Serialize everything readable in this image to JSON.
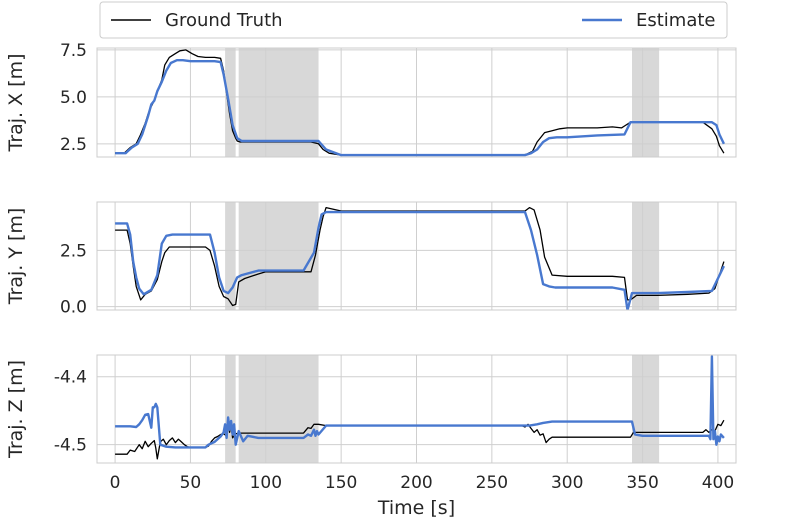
{
  "chart_data": {
    "type": "line",
    "xlabel": "Time [s]",
    "xlim": [
      -12,
      412
    ],
    "xticks": [
      0,
      50,
      100,
      150,
      200,
      250,
      300,
      350,
      400
    ],
    "legend": {
      "placement": "top",
      "entries": [
        {
          "label": "Ground Truth",
          "color": "#000000"
        },
        {
          "label": "Estimate",
          "color": "#4878cf"
        }
      ]
    },
    "shaded_intervals": [
      [
        73,
        80
      ],
      [
        82,
        135
      ],
      [
        343,
        361
      ]
    ],
    "panels": [
      {
        "ylabel": "Traj. X [m]",
        "ylim": [
          1.8,
          7.6
        ],
        "yticks": [
          {
            "value": 2.5,
            "label": "2.5"
          },
          {
            "value": 5.0,
            "label": "5.0"
          },
          {
            "value": 7.5,
            "label": "7.5"
          }
        ],
        "series": [
          {
            "name": "Ground Truth",
            "color": "#000000",
            "width": 1.3,
            "x": [
              0,
              6,
              10,
              14,
              17,
              20,
              22,
              24,
              26,
              28,
              31,
              33,
              36,
              40,
              43,
              47,
              51,
              55,
              60,
              66,
              70,
              72,
              74,
              76,
              78,
              80,
              81,
              83,
              88,
              100,
              120,
              130,
              135,
              138,
              142,
              150,
              200,
              260,
              270,
              273,
              277,
              280,
              285,
              290,
              295,
              300,
              320,
              330,
              336,
              338,
              342,
              346,
              360,
              375,
              390,
              396,
              399,
              401,
              404
            ],
            "y": [
              2.0,
              2.0,
              2.3,
              2.5,
              3.0,
              3.6,
              4.1,
              4.5,
              4.8,
              5.3,
              5.9,
              6.7,
              7.1,
              7.3,
              7.45,
              7.5,
              7.3,
              7.15,
              7.1,
              7.1,
              7.05,
              6.4,
              5.2,
              4.1,
              3.2,
              2.8,
              2.65,
              2.6,
              2.6,
              2.6,
              2.6,
              2.6,
              2.5,
              2.2,
              2.0,
              1.9,
              1.9,
              1.9,
              1.9,
              1.95,
              2.1,
              2.6,
              3.1,
              3.2,
              3.3,
              3.35,
              3.35,
              3.4,
              3.35,
              3.45,
              3.65,
              3.65,
              3.65,
              3.65,
              3.65,
              3.3,
              2.9,
              2.4,
              2.0
            ]
          },
          {
            "name": "Estimate",
            "color": "#4878cf",
            "width": 2.4,
            "x": [
              0,
              7,
              11,
              15,
              18,
              20,
              22,
              24,
              26,
              28,
              31,
              34,
              37,
              41,
              45,
              50,
              55,
              60,
              66,
              70,
              72,
              75,
              78,
              81,
              84,
              90,
              100,
              120,
              130,
              135,
              140,
              150,
              200,
              260,
              272,
              276,
              280,
              284,
              288,
              293,
              300,
              320,
              338,
              342,
              346,
              360,
              380,
              396,
              399,
              401,
              404
            ],
            "y": [
              2.0,
              2.0,
              2.3,
              2.5,
              3.0,
              3.5,
              4.0,
              4.6,
              4.8,
              5.3,
              5.8,
              6.4,
              6.8,
              6.95,
              6.95,
              6.9,
              6.9,
              6.9,
              6.9,
              6.85,
              6.2,
              4.9,
              3.5,
              2.8,
              2.65,
              2.65,
              2.65,
              2.65,
              2.65,
              2.65,
              2.2,
              1.9,
              1.9,
              1.9,
              1.9,
              2.0,
              2.2,
              2.6,
              2.8,
              2.85,
              2.85,
              2.95,
              3.0,
              3.65,
              3.65,
              3.65,
              3.65,
              3.65,
              3.5,
              3.0,
              2.5
            ]
          }
        ]
      },
      {
        "ylabel": "Traj. Y [m]",
        "ylim": [
          -0.15,
          4.65
        ],
        "yticks": [
          {
            "value": 0.0,
            "label": "0.0"
          },
          {
            "value": 2.5,
            "label": "2.5"
          }
        ],
        "series": [
          {
            "name": "Ground Truth",
            "color": "#000000",
            "width": 1.3,
            "x": [
              0,
              8,
              10,
              12,
              14,
              17,
              20,
              24,
              28,
              31,
              33,
              36,
              40,
              50,
              60,
              63,
              66,
              69,
              72,
              75,
              78,
              80,
              82,
              86,
              95,
              100,
              125,
              130,
              133,
              136,
              138,
              140,
              150,
              200,
              260,
              272,
              275,
              278,
              282,
              285,
              290,
              300,
              330,
              338,
              340,
              342,
              346,
              360,
              380,
              394,
              398,
              404
            ],
            "y": [
              3.4,
              3.4,
              2.8,
              1.8,
              0.9,
              0.3,
              0.55,
              0.7,
              1.2,
              2.0,
              2.4,
              2.65,
              2.65,
              2.65,
              2.65,
              2.5,
              1.8,
              0.9,
              0.45,
              0.35,
              0.05,
              0.1,
              1.1,
              1.25,
              1.45,
              1.55,
              1.55,
              1.55,
              2.3,
              3.4,
              4.0,
              4.4,
              4.25,
              4.25,
              4.25,
              4.25,
              4.4,
              4.3,
              3.4,
              2.2,
              1.4,
              1.35,
              1.35,
              1.3,
              0.3,
              0.3,
              0.5,
              0.5,
              0.55,
              0.6,
              0.8,
              2.0
            ]
          },
          {
            "name": "Estimate",
            "color": "#4878cf",
            "width": 2.4,
            "x": [
              0,
              8,
              10,
              12,
              14,
              16,
              19,
              24,
              28,
              31,
              34,
              38,
              50,
              63,
              66,
              69,
              72,
              75,
              78,
              81,
              84,
              95,
              100,
              125,
              132,
              135,
              137,
              140,
              150,
              200,
              260,
              272,
              276,
              280,
              284,
              288,
              292,
              300,
              330,
              338,
              340,
              343,
              346,
              360,
              380,
              396,
              404
            ],
            "y": [
              3.7,
              3.7,
              3.2,
              2.0,
              1.3,
              0.8,
              0.55,
              0.75,
              1.4,
              2.8,
              3.15,
              3.2,
              3.2,
              3.2,
              2.4,
              1.3,
              0.7,
              0.6,
              0.85,
              1.3,
              1.4,
              1.6,
              1.6,
              1.6,
              2.4,
              3.5,
              4.1,
              4.2,
              4.2,
              4.2,
              4.2,
              4.2,
              3.4,
              2.3,
              1.0,
              0.9,
              0.85,
              0.85,
              0.85,
              0.75,
              -0.15,
              0.6,
              0.6,
              0.6,
              0.65,
              0.7,
              1.8
            ]
          }
        ]
      },
      {
        "ylabel": "Traj. Z [m]",
        "ylim": [
          -4.527,
          -4.368
        ],
        "yticks": [
          {
            "value": -4.4,
            "label": "-4.4"
          },
          {
            "value": -4.5,
            "label": "-4.5"
          }
        ],
        "series": [
          {
            "name": "Ground Truth",
            "color": "#000000",
            "width": 1.3,
            "x": [
              0,
              8,
              10,
              13,
              16,
              18,
              20,
              22,
              24,
              26,
              27,
              28,
              30,
              32,
              34,
              36,
              38,
              40,
              42,
              44,
              46,
              48,
              50,
              55,
              60,
              62,
              64,
              66,
              68,
              70,
              72,
              74,
              75,
              76,
              77,
              78,
              80,
              82,
              84,
              86,
              88,
              90,
              100,
              120,
              125,
              128,
              130,
              132,
              135,
              140,
              150,
              200,
              260,
              270,
              272,
              274,
              276,
              278,
              280,
              282,
              284,
              286,
              288,
              290,
              300,
              330,
              342,
              344,
              360,
              380,
              390,
              392,
              394,
              396,
              398,
              400,
              402,
              404
            ],
            "y": [
              -4.514,
              -4.514,
              -4.508,
              -4.51,
              -4.5,
              -4.506,
              -4.495,
              -4.503,
              -4.498,
              -4.494,
              -4.505,
              -4.521,
              -4.496,
              -4.492,
              -4.5,
              -4.494,
              -4.49,
              -4.497,
              -4.492,
              -4.496,
              -4.5,
              -4.503,
              -4.504,
              -4.504,
              -4.504,
              -4.502,
              -4.495,
              -4.49,
              -4.488,
              -4.485,
              -4.484,
              -4.487,
              -4.467,
              -4.482,
              -4.472,
              -4.49,
              -4.484,
              -4.483,
              -4.483,
              -4.483,
              -4.483,
              -4.483,
              -4.483,
              -4.483,
              -4.483,
              -4.475,
              -4.476,
              -4.47,
              -4.47,
              -4.472,
              -4.472,
              -4.472,
              -4.472,
              -4.472,
              -4.474,
              -4.47,
              -4.476,
              -4.482,
              -4.478,
              -4.486,
              -4.484,
              -4.497,
              -4.492,
              -4.489,
              -4.489,
              -4.489,
              -4.489,
              -4.482,
              -4.482,
              -4.482,
              -4.482,
              -4.478,
              -4.482,
              -4.478,
              -4.48,
              -4.47,
              -4.472,
              -4.464
            ]
          },
          {
            "name": "Estimate",
            "color": "#4878cf",
            "width": 2.4,
            "x": [
              0,
              10,
              14,
              16,
              18,
              20,
              22,
              24,
              25,
              26,
              27,
              28,
              30,
              34,
              40,
              50,
              60,
              62,
              66,
              70,
              72,
              73,
              74,
              75,
              76,
              77,
              78,
              79,
              80,
              82,
              85,
              88,
              95,
              100,
              110,
              120,
              125,
              128,
              130,
              132,
              133,
              134,
              135,
              140,
              150,
              200,
              260,
              270,
              275,
              280,
              284,
              290,
              300,
              320,
              330,
              338,
              341,
              343,
              345,
              350,
              360,
              370,
              380,
              390,
              394,
              395,
              396,
              397,
              398,
              399,
              400,
              401,
              402,
              404
            ],
            "y": [
              -4.473,
              -4.473,
              -4.474,
              -4.47,
              -4.464,
              -4.456,
              -4.455,
              -4.475,
              -4.445,
              -4.445,
              -4.44,
              -4.445,
              -4.5,
              -4.503,
              -4.504,
              -4.504,
              -4.504,
              -4.5,
              -4.496,
              -4.488,
              -4.482,
              -4.47,
              -4.49,
              -4.46,
              -4.478,
              -4.465,
              -4.485,
              -4.47,
              -4.5,
              -4.48,
              -4.495,
              -4.487,
              -4.49,
              -4.49,
              -4.49,
              -4.49,
              -4.49,
              -4.485,
              -4.487,
              -4.478,
              -4.487,
              -4.48,
              -4.485,
              -4.472,
              -4.472,
              -4.472,
              -4.472,
              -4.472,
              -4.472,
              -4.47,
              -4.468,
              -4.466,
              -4.466,
              -4.466,
              -4.466,
              -4.466,
              -4.466,
              -4.466,
              -4.485,
              -4.487,
              -4.487,
              -4.487,
              -4.487,
              -4.487,
              -4.487,
              -4.492,
              -4.37,
              -4.492,
              -4.48,
              -4.5,
              -4.488,
              -4.495,
              -4.485,
              -4.49
            ]
          }
        ]
      }
    ]
  }
}
